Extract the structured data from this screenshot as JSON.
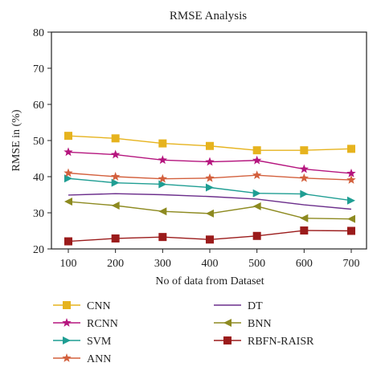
{
  "chart_data": {
    "type": "line",
    "title": "RMSE Analysis",
    "xlabel": "No of data from Dataset",
    "ylabel": "RMSE in (%)",
    "x": [
      100,
      200,
      300,
      400,
      500,
      600,
      700
    ],
    "xticks": [
      "100",
      "200",
      "300",
      "400",
      "500",
      "600",
      "700"
    ],
    "yticks": [
      "20",
      "30",
      "40",
      "50",
      "60",
      "70",
      "80"
    ],
    "ylim": [
      20,
      80
    ],
    "grid": false,
    "legend_position": "bottom",
    "series": [
      {
        "name": "CNN",
        "color": "#e6b31e",
        "marker": "square",
        "values": [
          51.3,
          50.6,
          49.2,
          48.5,
          47.3,
          47.3,
          47.7
        ]
      },
      {
        "name": "RCNN",
        "color": "#b5157e",
        "marker": "star",
        "values": [
          46.8,
          46.1,
          44.6,
          44.1,
          44.5,
          42.1,
          40.9
        ]
      },
      {
        "name": "SVM",
        "color": "#1f9e93",
        "marker": "triangle-right",
        "values": [
          39.5,
          38.3,
          37.9,
          37.0,
          35.4,
          35.2,
          33.4
        ]
      },
      {
        "name": "ANN",
        "color": "#d3603d",
        "marker": "star",
        "values": [
          41.0,
          40.0,
          39.4,
          39.6,
          40.4,
          39.6,
          39.1
        ]
      },
      {
        "name": "DT",
        "color": "#6c2f8c",
        "marker": "none",
        "values": [
          34.9,
          35.3,
          35.0,
          34.5,
          33.8,
          32.2,
          31.0
        ]
      },
      {
        "name": "BNN",
        "color": "#8d8a20",
        "marker": "triangle-left",
        "values": [
          33.1,
          32.0,
          30.4,
          29.8,
          31.8,
          28.5,
          28.3
        ]
      },
      {
        "name": "RBFN-RAISR",
        "color": "#9b1b1b",
        "marker": "square",
        "values": [
          22.1,
          22.9,
          23.3,
          22.6,
          23.6,
          25.1,
          25.0
        ]
      }
    ]
  }
}
